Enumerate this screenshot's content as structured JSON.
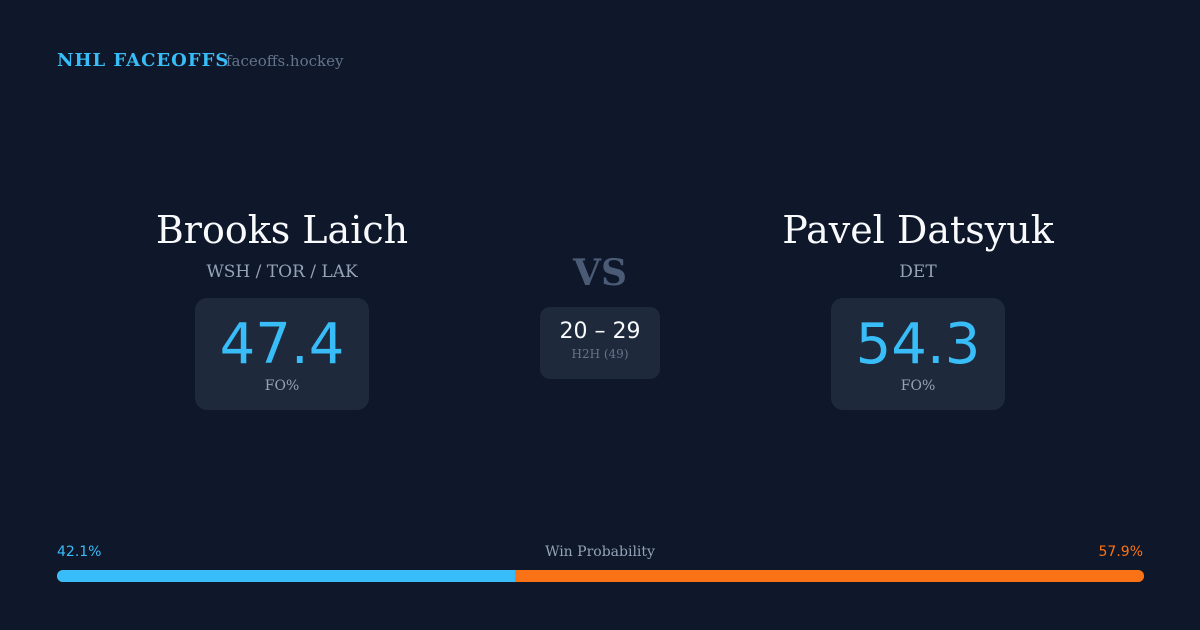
{
  "header": {
    "brand": "NHL FACEOFFS",
    "site": "faceoffs.hockey"
  },
  "left": {
    "name": "Brooks Laich",
    "teams": "WSH / TOR / LAK",
    "fo_pct": "47.4",
    "fo_label": "FO%"
  },
  "right": {
    "name": "Pavel Datsyuk",
    "teams": "DET",
    "fo_pct": "54.3",
    "fo_label": "FO%"
  },
  "vs": "VS",
  "h2h": {
    "score": "20 – 29",
    "label": "H2H (49)"
  },
  "win_prob": {
    "title": "Win Probability",
    "left": "42.1%",
    "right": "57.9%",
    "left_value": 42.1,
    "right_value": 57.9,
    "left_color": "#38bdf8",
    "right_color": "#f97316"
  }
}
